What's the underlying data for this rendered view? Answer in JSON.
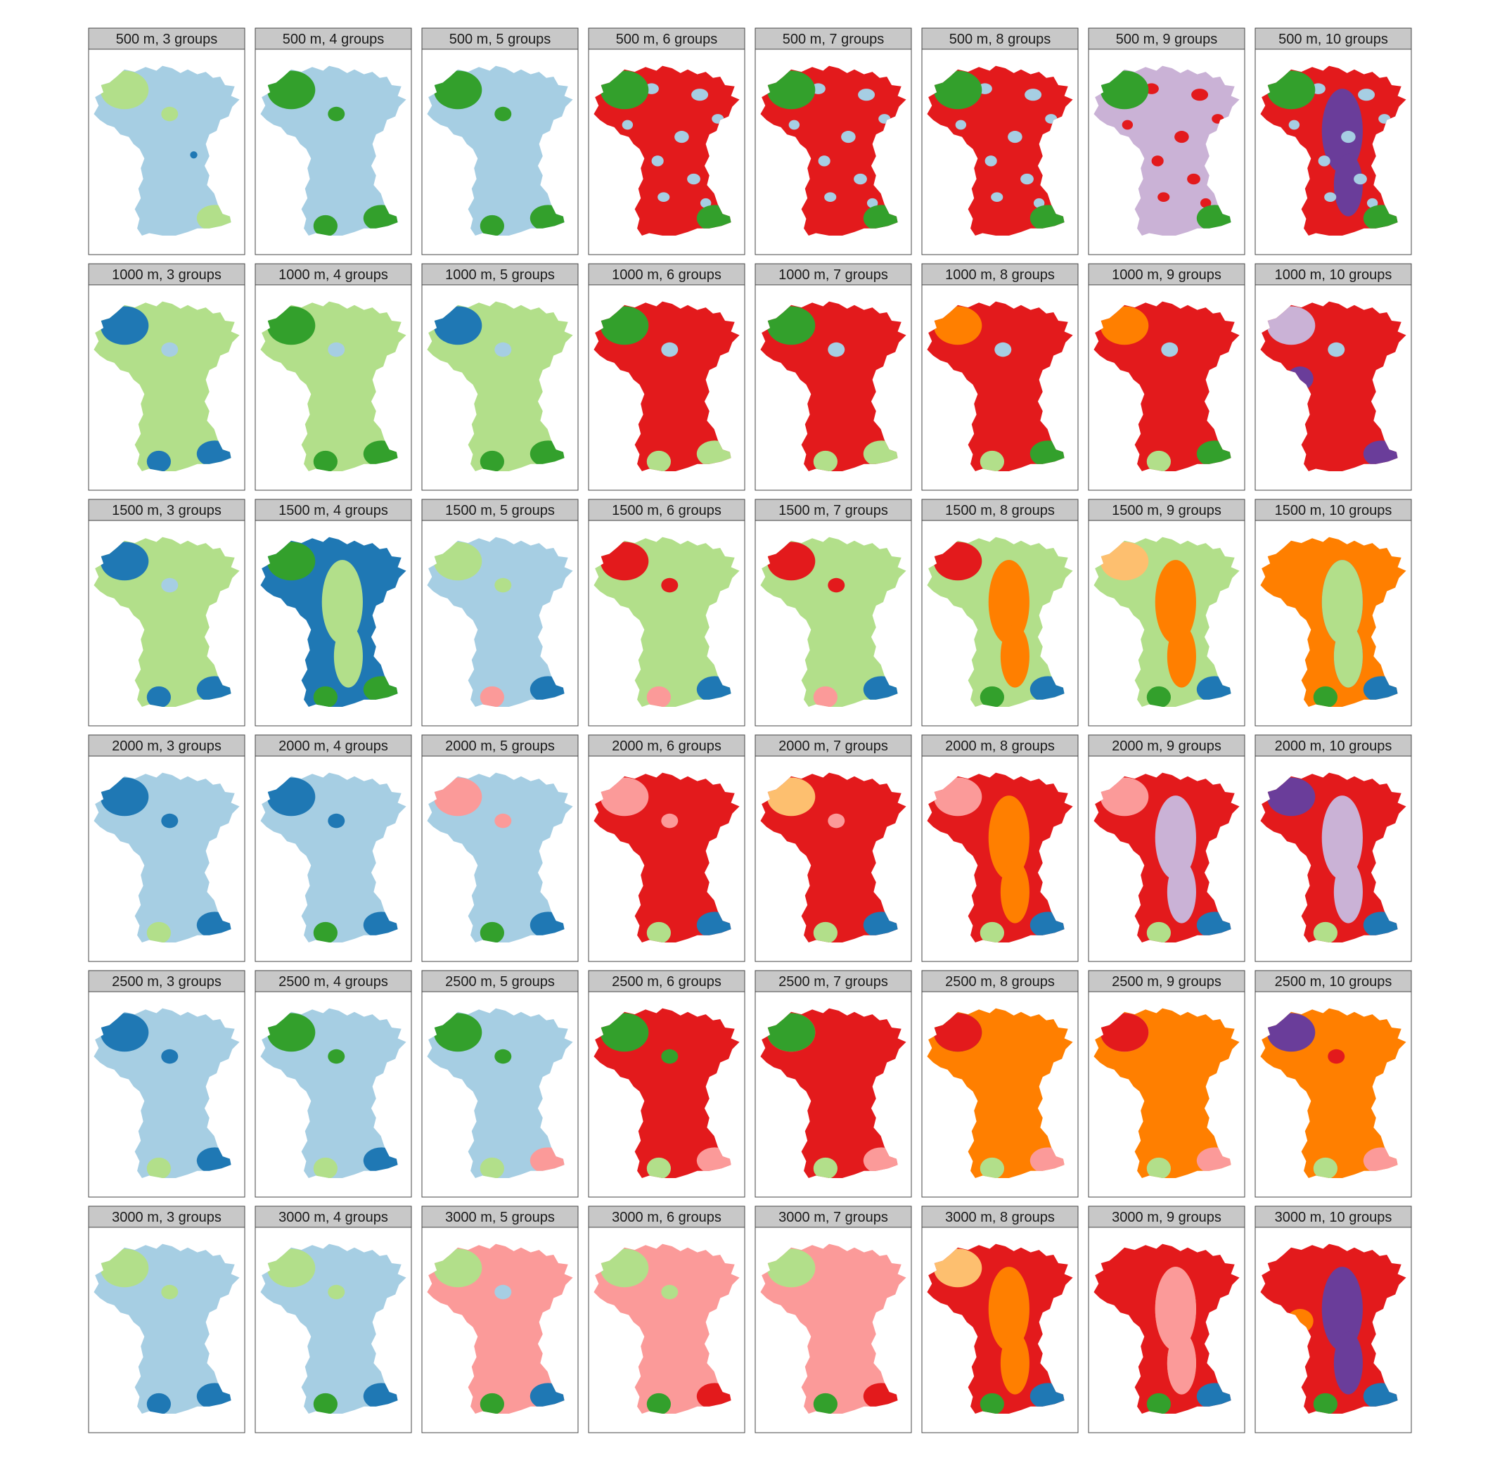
{
  "chart_data": {
    "type": "small-multiples-map",
    "title": "",
    "xlabel": "",
    "ylabel": "",
    "legend": "none",
    "grid": false,
    "palette": {
      "light_blue": "#a6cee3",
      "dark_blue": "#1f78b4",
      "light_green": "#b2df8a",
      "dark_green": "#33a02c",
      "pink": "#fb9a99",
      "red": "#e31a1c",
      "light_orange": "#fdbf6f",
      "orange": "#ff7f00",
      "light_purple": "#cab2d6",
      "dark_purple": "#6a3d9a"
    },
    "rows": [
      "500 m",
      "1000 m",
      "1500 m",
      "2000 m",
      "2500 m",
      "3000 m"
    ],
    "cols": [
      "3 groups",
      "4 groups",
      "5 groups",
      "6 groups",
      "7 groups",
      "8 groups",
      "9 groups",
      "10 groups"
    ],
    "panels": [
      {
        "label": "500 m, 3 groups",
        "background": "light_blue",
        "patches": [
          "light_green:nw",
          "light_green:center",
          "light_green:se",
          "dark_blue:mid-east"
        ]
      },
      {
        "label": "500 m, 4 groups",
        "background": "light_blue",
        "patches": [
          "dark_green:nw",
          "dark_green:center",
          "dark_green:se",
          "dark_green:sw"
        ]
      },
      {
        "label": "500 m, 5 groups",
        "background": "light_blue",
        "patches": [
          "dark_green:nw",
          "dark_green:center",
          "dark_green:se",
          "dark_green:sw"
        ]
      },
      {
        "label": "500 m, 6 groups",
        "background": "red",
        "patches": [
          "light_blue:scatter",
          "dark_green:nw",
          "dark_green:se"
        ]
      },
      {
        "label": "500 m, 7 groups",
        "background": "red",
        "patches": [
          "light_blue:scatter",
          "dark_green:nw",
          "dark_green:se"
        ]
      },
      {
        "label": "500 m, 8 groups",
        "background": "red",
        "patches": [
          "light_blue:scatter",
          "dark_green:nw",
          "dark_green:se"
        ]
      },
      {
        "label": "500 m, 9 groups",
        "background": "light_purple",
        "patches": [
          "red:scatter",
          "dark_green:nw",
          "dark_green:se"
        ]
      },
      {
        "label": "500 m, 10 groups",
        "background": "red",
        "patches": [
          "dark_purple:spine",
          "light_blue:scatter",
          "dark_green:nw",
          "dark_green:se"
        ]
      },
      {
        "label": "1000 m, 3 groups",
        "background": "light_green",
        "patches": [
          "dark_blue:nw",
          "dark_blue:se",
          "dark_blue:sw",
          "light_blue:center"
        ]
      },
      {
        "label": "1000 m, 4 groups",
        "background": "light_green",
        "patches": [
          "dark_green:nw",
          "dark_green:se",
          "dark_green:sw",
          "light_blue:center"
        ]
      },
      {
        "label": "1000 m, 5 groups",
        "background": "light_green",
        "patches": [
          "dark_blue:nw",
          "dark_green:se",
          "dark_green:sw",
          "light_blue:center"
        ]
      },
      {
        "label": "1000 m, 6 groups",
        "background": "red",
        "patches": [
          "dark_green:nw",
          "light_green:se",
          "light_green:sw",
          "light_blue:center"
        ]
      },
      {
        "label": "1000 m, 7 groups",
        "background": "red",
        "patches": [
          "dark_green:nw",
          "light_green:se",
          "light_green:sw",
          "light_blue:center"
        ]
      },
      {
        "label": "1000 m, 8 groups",
        "background": "red",
        "patches": [
          "orange:nw",
          "dark_green:se",
          "light_green:sw",
          "light_blue:center"
        ]
      },
      {
        "label": "1000 m, 9 groups",
        "background": "red",
        "patches": [
          "orange:nw",
          "dark_green:se",
          "light_green:sw",
          "light_blue:center"
        ]
      },
      {
        "label": "1000 m, 10 groups",
        "background": "red",
        "patches": [
          "light_purple:nw",
          "dark_purple:west",
          "dark_purple:se",
          "light_blue:center"
        ]
      },
      {
        "label": "1500 m, 3 groups",
        "background": "light_green",
        "patches": [
          "dark_blue:nw",
          "dark_blue:se",
          "dark_blue:sw",
          "light_blue:center"
        ]
      },
      {
        "label": "1500 m, 4 groups",
        "background": "dark_blue",
        "patches": [
          "light_green:spine",
          "dark_green:nw",
          "dark_green:se",
          "dark_green:sw"
        ]
      },
      {
        "label": "1500 m, 5 groups",
        "background": "light_blue",
        "patches": [
          "light_green:nw",
          "light_green:center",
          "dark_blue:se",
          "pink:sw"
        ]
      },
      {
        "label": "1500 m, 6 groups",
        "background": "light_green",
        "patches": [
          "red:nw",
          "red:center",
          "dark_blue:se",
          "pink:sw"
        ]
      },
      {
        "label": "1500 m, 7 groups",
        "background": "light_green",
        "patches": [
          "red:nw",
          "red:center",
          "dark_blue:se",
          "pink:sw"
        ]
      },
      {
        "label": "1500 m, 8 groups",
        "background": "light_green",
        "patches": [
          "orange:spine",
          "red:nw",
          "dark_blue:se",
          "dark_green:sw"
        ]
      },
      {
        "label": "1500 m, 9 groups",
        "background": "light_green",
        "patches": [
          "orange:spine",
          "light_orange:nw",
          "dark_blue:se",
          "dark_green:sw"
        ]
      },
      {
        "label": "1500 m, 10 groups",
        "background": "orange",
        "patches": [
          "dark_purple:spine",
          "light_green:spine",
          "dark_blue:se",
          "dark_green:sw"
        ]
      },
      {
        "label": "2000 m, 3 groups",
        "background": "light_blue",
        "patches": [
          "dark_blue:nw",
          "dark_blue:center",
          "dark_blue:se",
          "light_green:sw"
        ]
      },
      {
        "label": "2000 m, 4 groups",
        "background": "light_blue",
        "patches": [
          "dark_blue:nw",
          "dark_blue:center",
          "dark_blue:se",
          "dark_green:sw"
        ]
      },
      {
        "label": "2000 m, 5 groups",
        "background": "light_blue",
        "patches": [
          "pink:nw",
          "pink:center",
          "dark_blue:se",
          "dark_green:sw"
        ]
      },
      {
        "label": "2000 m, 6 groups",
        "background": "red",
        "patches": [
          "pink:nw",
          "pink:center",
          "dark_blue:se",
          "light_green:sw"
        ]
      },
      {
        "label": "2000 m, 7 groups",
        "background": "red",
        "patches": [
          "light_orange:nw",
          "pink:center",
          "dark_blue:se",
          "light_green:sw"
        ]
      },
      {
        "label": "2000 m, 8 groups",
        "background": "red",
        "patches": [
          "orange:spine",
          "pink:nw",
          "dark_blue:se",
          "light_green:sw"
        ]
      },
      {
        "label": "2000 m, 9 groups",
        "background": "red",
        "patches": [
          "light_purple:spine",
          "pink:nw",
          "dark_blue:se",
          "light_green:sw"
        ]
      },
      {
        "label": "2000 m, 10 groups",
        "background": "red",
        "patches": [
          "light_purple:spine",
          "dark_purple:nw",
          "dark_blue:se",
          "light_green:sw"
        ]
      },
      {
        "label": "2500 m, 3 groups",
        "background": "light_blue",
        "patches": [
          "dark_blue:nw",
          "dark_blue:center",
          "dark_blue:se",
          "light_green:sw"
        ]
      },
      {
        "label": "2500 m, 4 groups",
        "background": "light_blue",
        "patches": [
          "dark_green:nw",
          "dark_green:center",
          "dark_blue:se",
          "light_green:sw"
        ]
      },
      {
        "label": "2500 m, 5 groups",
        "background": "light_blue",
        "patches": [
          "dark_green:nw",
          "dark_green:center",
          "pink:se",
          "light_green:sw"
        ]
      },
      {
        "label": "2500 m, 6 groups",
        "background": "red",
        "patches": [
          "dark_green:nw",
          "dark_green:center",
          "pink:se",
          "light_green:sw"
        ]
      },
      {
        "label": "2500 m, 7 groups",
        "background": "red",
        "patches": [
          "light_orange:nw",
          "dark_green:nw",
          "pink:se",
          "light_green:sw"
        ]
      },
      {
        "label": "2500 m, 8 groups",
        "background": "orange",
        "patches": [
          "dark_green:nw",
          "red:nw",
          "pink:se",
          "light_green:sw"
        ]
      },
      {
        "label": "2500 m, 9 groups",
        "background": "orange",
        "patches": [
          "light_purple:nw",
          "red:nw",
          "pink:se",
          "light_green:sw"
        ]
      },
      {
        "label": "2500 m, 10 groups",
        "background": "orange",
        "patches": [
          "dark_purple:nw",
          "red:center",
          "pink:se",
          "light_green:sw"
        ]
      },
      {
        "label": "3000 m, 3 groups",
        "background": "light_blue",
        "patches": [
          "light_green:nw",
          "light_green:center",
          "dark_blue:se",
          "dark_blue:sw"
        ]
      },
      {
        "label": "3000 m, 4 groups",
        "background": "light_blue",
        "patches": [
          "light_green:nw",
          "light_green:center",
          "dark_blue:se",
          "dark_green:sw"
        ]
      },
      {
        "label": "3000 m, 5 groups",
        "background": "pink",
        "patches": [
          "light_green:nw",
          "light_blue:center",
          "dark_blue:se",
          "dark_green:sw"
        ]
      },
      {
        "label": "3000 m, 6 groups",
        "background": "pink",
        "patches": [
          "light_green:nw",
          "light_green:center",
          "red:se",
          "dark_green:sw"
        ]
      },
      {
        "label": "3000 m, 7 groups",
        "background": "pink",
        "patches": [
          "light_orange:nw",
          "light_green:nw",
          "red:se",
          "dark_green:sw"
        ]
      },
      {
        "label": "3000 m, 8 groups",
        "background": "red",
        "patches": [
          "orange:spine",
          "light_orange:nw",
          "dark_blue:se",
          "dark_green:sw"
        ]
      },
      {
        "label": "3000 m, 9 groups",
        "background": "red",
        "patches": [
          "light_orange:spine",
          "pink:spine",
          "dark_blue:se",
          "dark_green:sw"
        ]
      },
      {
        "label": "3000 m, 10 groups",
        "background": "red",
        "patches": [
          "dark_purple:spine",
          "orange:west",
          "dark_blue:se",
          "dark_green:sw"
        ]
      }
    ]
  }
}
